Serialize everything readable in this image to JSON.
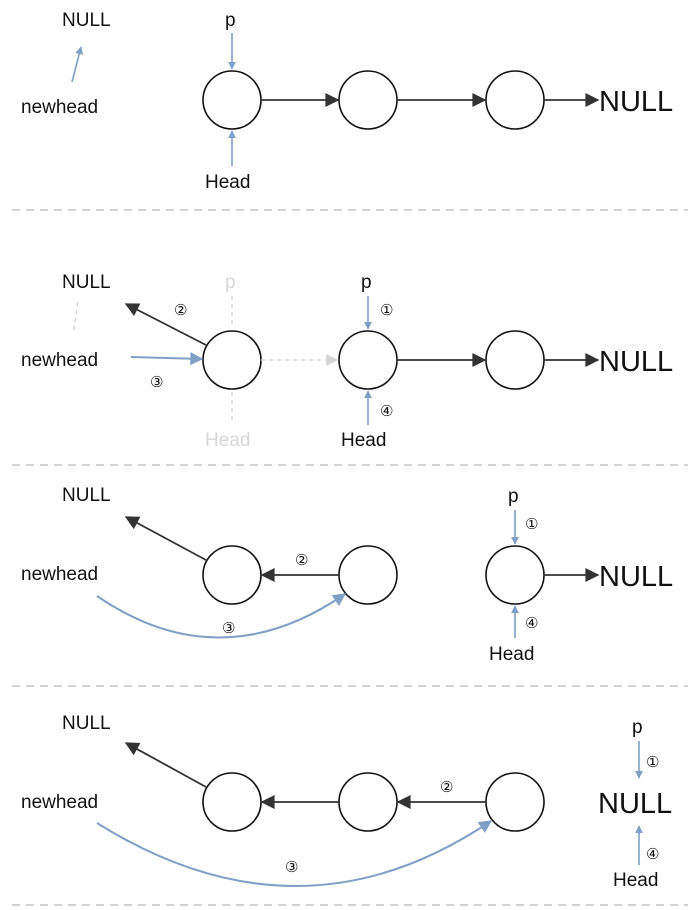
{
  "labels": {
    "null": "NULL",
    "newhead": "newhead",
    "head": "Head",
    "p": "p"
  },
  "steps": {
    "s1": "①",
    "s2": "②",
    "s3": "③",
    "s4": "④"
  },
  "colors": {
    "pointer": "#7f9fc4",
    "link": "#333333",
    "faded": "#d6d6d6",
    "separator": "#c4c4c4"
  }
}
